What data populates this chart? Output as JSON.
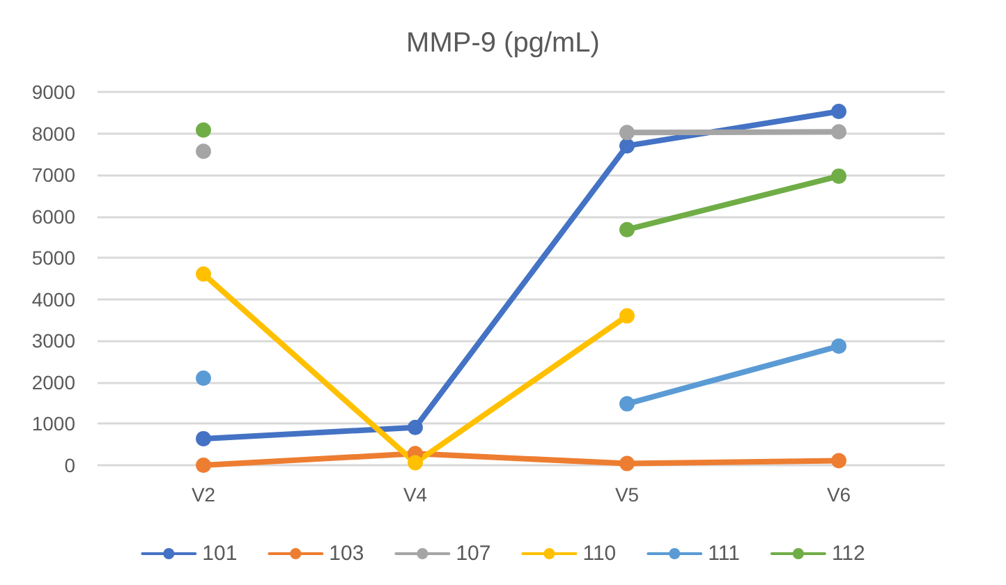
{
  "chart_data": {
    "type": "line",
    "title": "MMP-9 (pg/mL)",
    "categories": [
      "V2",
      "V4",
      "V5",
      "V6"
    ],
    "series": [
      {
        "name": "101",
        "color": "#4472c4",
        "values": [
          640,
          910,
          7700,
          8530
        ]
      },
      {
        "name": "103",
        "color": "#ed7d31",
        "values": [
          0,
          280,
          40,
          110
        ]
      },
      {
        "name": "107",
        "color": "#a5a5a5",
        "values": [
          7570,
          null,
          8020,
          8040
        ]
      },
      {
        "name": "110",
        "color": "#ffc000",
        "values": [
          4610,
          60,
          3600,
          null
        ]
      },
      {
        "name": "111",
        "color": "#5b9bd5",
        "values": [
          2100,
          null,
          1480,
          2870
        ]
      },
      {
        "name": "112",
        "color": "#70ad47",
        "values": [
          8080,
          null,
          5680,
          6970
        ]
      }
    ],
    "ylim": [
      0,
      9000
    ],
    "yticks": [
      0,
      1000,
      2000,
      3000,
      4000,
      5000,
      6000,
      7000,
      8000,
      9000
    ],
    "grid": "y",
    "legend": "bottom",
    "marker": "circle",
    "line_style": "solid"
  }
}
